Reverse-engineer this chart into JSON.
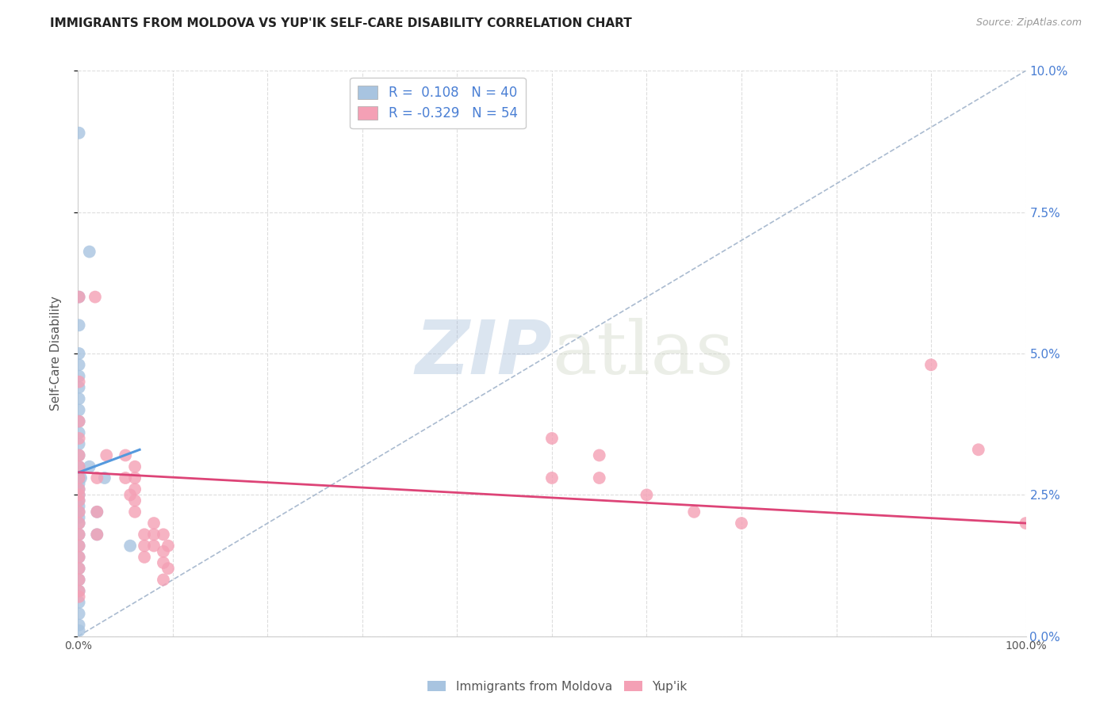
{
  "title": "IMMIGRANTS FROM MOLDOVA VS YUP'IK SELF-CARE DISABILITY CORRELATION CHART",
  "source": "Source: ZipAtlas.com",
  "ylabel": "Self-Care Disability",
  "legend_blue_R": "0.108",
  "legend_blue_N": "40",
  "legend_pink_R": "-0.329",
  "legend_pink_N": "54",
  "blue_color": "#a8c4e0",
  "pink_color": "#f4a0b5",
  "blue_line_color": "#5599dd",
  "pink_line_color": "#dd4477",
  "blue_scatter": [
    [
      0.001,
      0.089
    ],
    [
      0.001,
      0.06
    ],
    [
      0.001,
      0.055
    ],
    [
      0.001,
      0.05
    ],
    [
      0.001,
      0.048
    ],
    [
      0.001,
      0.046
    ],
    [
      0.001,
      0.044
    ],
    [
      0.001,
      0.042
    ],
    [
      0.001,
      0.04
    ],
    [
      0.001,
      0.038
    ],
    [
      0.001,
      0.036
    ],
    [
      0.001,
      0.034
    ],
    [
      0.001,
      0.032
    ],
    [
      0.001,
      0.03
    ],
    [
      0.001,
      0.028
    ],
    [
      0.001,
      0.027
    ],
    [
      0.001,
      0.026
    ],
    [
      0.001,
      0.025
    ],
    [
      0.001,
      0.024
    ],
    [
      0.001,
      0.023
    ],
    [
      0.001,
      0.022
    ],
    [
      0.001,
      0.021
    ],
    [
      0.001,
      0.02
    ],
    [
      0.001,
      0.018
    ],
    [
      0.001,
      0.016
    ],
    [
      0.001,
      0.014
    ],
    [
      0.001,
      0.012
    ],
    [
      0.001,
      0.01
    ],
    [
      0.001,
      0.008
    ],
    [
      0.001,
      0.006
    ],
    [
      0.001,
      0.004
    ],
    [
      0.001,
      0.002
    ],
    [
      0.001,
      0.001
    ],
    [
      0.003,
      0.028
    ],
    [
      0.012,
      0.068
    ],
    [
      0.012,
      0.03
    ],
    [
      0.02,
      0.022
    ],
    [
      0.02,
      0.018
    ],
    [
      0.028,
      0.028
    ],
    [
      0.055,
      0.016
    ]
  ],
  "pink_scatter": [
    [
      0.001,
      0.06
    ],
    [
      0.001,
      0.045
    ],
    [
      0.001,
      0.038
    ],
    [
      0.001,
      0.035
    ],
    [
      0.001,
      0.032
    ],
    [
      0.001,
      0.03
    ],
    [
      0.001,
      0.028
    ],
    [
      0.001,
      0.026
    ],
    [
      0.001,
      0.025
    ],
    [
      0.001,
      0.024
    ],
    [
      0.001,
      0.022
    ],
    [
      0.001,
      0.02
    ],
    [
      0.001,
      0.018
    ],
    [
      0.001,
      0.016
    ],
    [
      0.001,
      0.014
    ],
    [
      0.001,
      0.012
    ],
    [
      0.001,
      0.01
    ],
    [
      0.001,
      0.008
    ],
    [
      0.001,
      0.007
    ],
    [
      0.018,
      0.06
    ],
    [
      0.02,
      0.028
    ],
    [
      0.02,
      0.022
    ],
    [
      0.02,
      0.018
    ],
    [
      0.03,
      0.032
    ],
    [
      0.05,
      0.032
    ],
    [
      0.05,
      0.028
    ],
    [
      0.055,
      0.025
    ],
    [
      0.06,
      0.03
    ],
    [
      0.06,
      0.028
    ],
    [
      0.06,
      0.026
    ],
    [
      0.06,
      0.024
    ],
    [
      0.06,
      0.022
    ],
    [
      0.07,
      0.018
    ],
    [
      0.07,
      0.016
    ],
    [
      0.07,
      0.014
    ],
    [
      0.08,
      0.02
    ],
    [
      0.08,
      0.018
    ],
    [
      0.08,
      0.016
    ],
    [
      0.09,
      0.018
    ],
    [
      0.09,
      0.015
    ],
    [
      0.09,
      0.013
    ],
    [
      0.09,
      0.01
    ],
    [
      0.095,
      0.016
    ],
    [
      0.095,
      0.012
    ],
    [
      0.5,
      0.035
    ],
    [
      0.5,
      0.028
    ],
    [
      0.55,
      0.032
    ],
    [
      0.55,
      0.028
    ],
    [
      0.6,
      0.025
    ],
    [
      0.65,
      0.022
    ],
    [
      0.7,
      0.02
    ],
    [
      0.9,
      0.048
    ],
    [
      0.95,
      0.033
    ],
    [
      1.0,
      0.02
    ]
  ],
  "blue_line_x": [
    0.001,
    0.065
  ],
  "blue_line_y": [
    0.029,
    0.033
  ],
  "pink_line_x": [
    0.001,
    1.0
  ],
  "pink_line_y": [
    0.029,
    0.02
  ],
  "diag_line_x": [
    0.0,
    1.0
  ],
  "diag_line_y": [
    0.0,
    0.1
  ],
  "watermark_zip": "ZIP",
  "watermark_atlas": "atlas",
  "background_color": "#ffffff",
  "grid_color": "#dddddd",
  "xlim": [
    0.0,
    1.0
  ],
  "ylim": [
    0.0,
    0.1
  ]
}
